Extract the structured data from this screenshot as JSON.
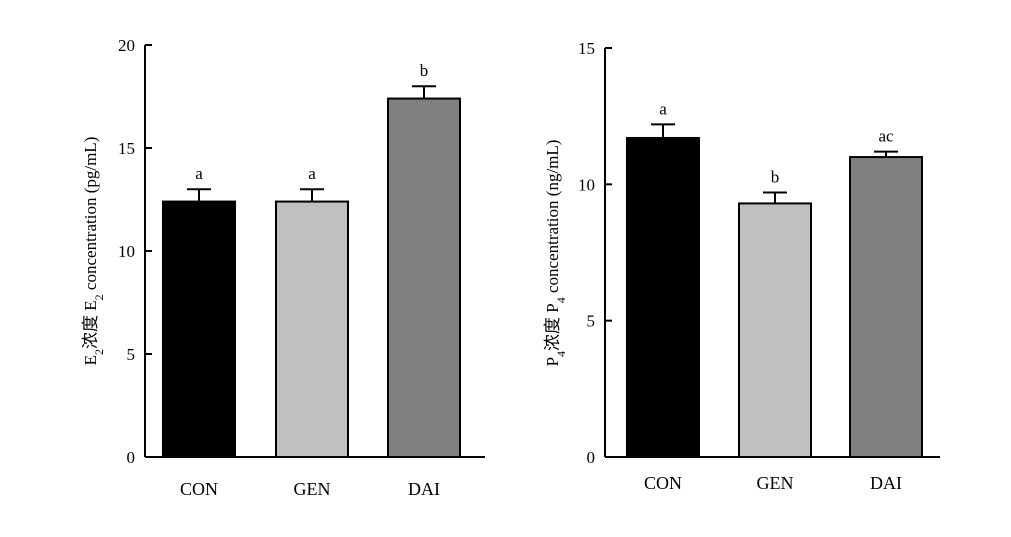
{
  "chart_data": [
    {
      "type": "bar",
      "ylabel": {
        "prefix": "E",
        "prefix_sub": "2",
        "middle": "浓度 E",
        "middle_sub": "2",
        "suffix": " concentration (pg/mL)"
      },
      "categories": [
        "CON",
        "GEN",
        "DAI"
      ],
      "values": [
        12.4,
        12.4,
        17.4
      ],
      "errors": [
        0.6,
        0.6,
        0.6
      ],
      "significance": [
        "a",
        "a",
        "b"
      ],
      "bar_colors": [
        "#000000",
        "#c0c0c0",
        "#808080"
      ],
      "ylim": [
        0,
        20
      ],
      "yticks": [
        0,
        5,
        10,
        15,
        20
      ],
      "ytick_labels": [
        "0",
        "5",
        "10",
        "15",
        "20"
      ]
    },
    {
      "type": "bar",
      "ylabel": {
        "prefix": "P",
        "prefix_sub": "4",
        "middle": "浓度 P",
        "middle_sub": "4",
        "suffix": " concentration (ng/mL)"
      },
      "categories": [
        "CON",
        "GEN",
        "DAI"
      ],
      "values": [
        11.7,
        9.3,
        11.0
      ],
      "errors": [
        0.5,
        0.4,
        0.2
      ],
      "significance": [
        "a",
        "b",
        "ac"
      ],
      "bar_colors": [
        "#000000",
        "#c0c0c0",
        "#808080"
      ],
      "ylim": [
        0,
        15
      ],
      "yticks": [
        0,
        5,
        10,
        15
      ],
      "ytick_labels": [
        "0",
        "5",
        "10",
        "15"
      ]
    }
  ]
}
